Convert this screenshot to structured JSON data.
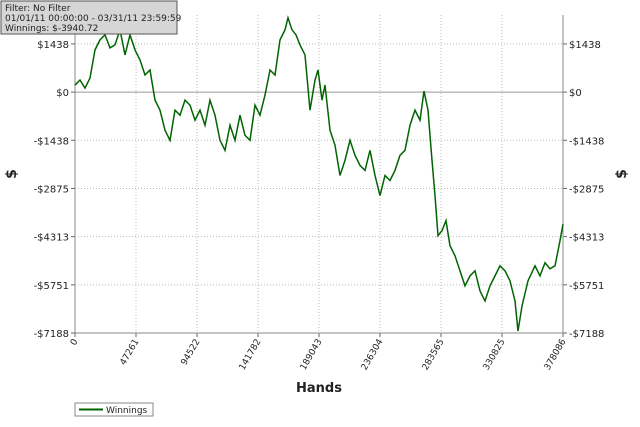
{
  "chart_data": {
    "type": "line",
    "annotations": [
      "Filter: No Filter",
      "01/01/11 00:00:00 - 03/31/11 23:59:59",
      "Winnings: $-3940.72"
    ],
    "x_label": "Hands",
    "y_label": "$",
    "x": [
      0,
      3874,
      7748,
      11622,
      15495,
      19369,
      23243,
      27117,
      30991,
      34865,
      38739,
      42612,
      46486,
      50360,
      54234,
      58108,
      61982,
      65856,
      69730,
      73604,
      77477,
      81351,
      85225,
      89099,
      92973,
      96847,
      100721,
      104595,
      108468,
      112342,
      116216,
      120090,
      123964,
      127838,
      131712,
      135586,
      139459,
      143333,
      147207,
      151081,
      154955,
      158829,
      162702,
      165027,
      168125,
      171224,
      174323,
      178197,
      182071,
      185945,
      188269,
      191368,
      193693,
      197566,
      201440,
      205314,
      209188,
      213062,
      216936,
      220810,
      224683,
      228557,
      232431,
      236305,
      240179,
      244053,
      247927,
      251801,
      255674,
      259548,
      263422,
      267296,
      270395,
      273494,
      276593,
      278918,
      281240,
      284340,
      287440,
      290539,
      294413,
      298286,
      302160,
      306034,
      309908,
      313782,
      317656,
      321522,
      325403,
      329277,
      333151,
      337025,
      340899,
      343223,
      346322,
      350971,
      356394,
      360268,
      364142,
      368016,
      371890,
      375764,
      378086
    ],
    "series": [
      {
        "name": "Winnings",
        "color": "#006400",
        "values": [
          210,
          360,
          120,
          419,
          1258,
          1558,
          1708,
          1318,
          1408,
          1858,
          1109,
          1708,
          1258,
          959,
          509,
          659,
          -240,
          -539,
          -1138,
          -1438,
          -539,
          -689,
          -240,
          -389,
          -839,
          -539,
          -989,
          -240,
          -689,
          -1438,
          -1738,
          -989,
          -1438,
          -689,
          -1288,
          -1438,
          -389,
          -689,
          -90,
          659,
          509,
          1558,
          1858,
          2217,
          1858,
          1708,
          1408,
          1109,
          -539,
          360,
          659,
          -240,
          210,
          -1138,
          -1588,
          -2487,
          -2037,
          -1438,
          -1887,
          -2187,
          -2337,
          -1738,
          -2487,
          -3086,
          -2487,
          -2637,
          -2337,
          -1887,
          -1738,
          -989,
          -539,
          -839,
          30,
          -539,
          -2037,
          -3086,
          -4284,
          -4134,
          -3835,
          -4584,
          -4883,
          -5333,
          -5782,
          -5483,
          -5333,
          -5932,
          -6232,
          -5782,
          -5483,
          -5183,
          -5333,
          -5632,
          -6232,
          -7130,
          -6382,
          -5632,
          -5183,
          -5483,
          -5093,
          -5273,
          -5183,
          -4434,
          -3940.72
        ]
      }
    ],
    "xlim": [
      0,
      378086
    ],
    "xticks": [
      0,
      47261,
      94522,
      141782,
      189043,
      236304,
      283565,
      330825,
      378086
    ],
    "ylim": [
      -7188,
      2300
    ],
    "yticks": [
      {
        "value": 1438,
        "label": "$1438"
      },
      {
        "value": 0,
        "label": "$0"
      },
      {
        "value": -1438,
        "label": "-$1438"
      },
      {
        "value": -2875,
        "label": "-$2875"
      },
      {
        "value": -4313,
        "label": "-$4313"
      },
      {
        "value": -5751,
        "label": "-$5751"
      },
      {
        "value": -7188,
        "label": "-$7188"
      }
    ],
    "grid": true,
    "legend": "bottom-left"
  }
}
